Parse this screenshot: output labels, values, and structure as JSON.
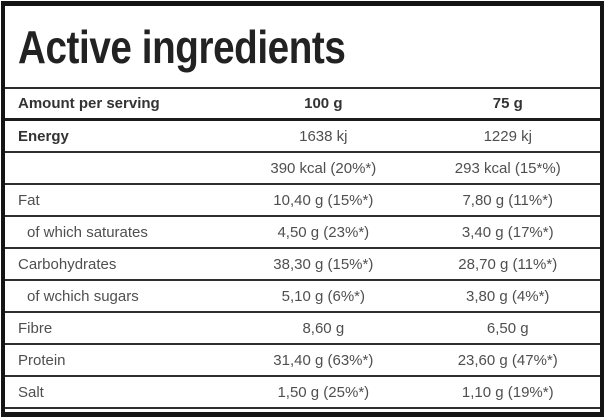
{
  "title": "Active ingredients",
  "colors": {
    "border": "#141414",
    "text_primary": "#222222",
    "text_secondary": "#4f4f4f"
  },
  "table": {
    "header": {
      "col_label": "Amount per serving",
      "col_100g": "100 g",
      "col_75g": "75 g"
    },
    "rows": [
      {
        "label": "Energy",
        "v100": "1638 kj",
        "v75": "1229 kj"
      },
      {
        "label": "",
        "v100": "390 kcal (20%*)",
        "v75": "293 kcal (15*%)"
      },
      {
        "label": "Fat",
        "v100": "10,40 g (15%*)",
        "v75": "7,80 g (11%*)"
      },
      {
        "label": "of which saturates",
        "v100": "4,50 g (23%*)",
        "v75": "3,40 g (17%*)"
      },
      {
        "label": "Carbohydrates",
        "v100": "38,30 g (15%*)",
        "v75": "28,70 g (11%*)"
      },
      {
        "label": "of wchich sugars",
        "v100": "5,10 g (6%*)",
        "v75": "3,80 g (4%*)"
      },
      {
        "label": "Fibre",
        "v100": "8,60 g",
        "v75": "6,50 g"
      },
      {
        "label": "Protein",
        "v100": "31,40 g (63%*)",
        "v75": "23,60 g (47%*)"
      },
      {
        "label": "Salt",
        "v100": "1,50 g (25%*)",
        "v75": "1,10 g (19%*)"
      }
    ]
  }
}
